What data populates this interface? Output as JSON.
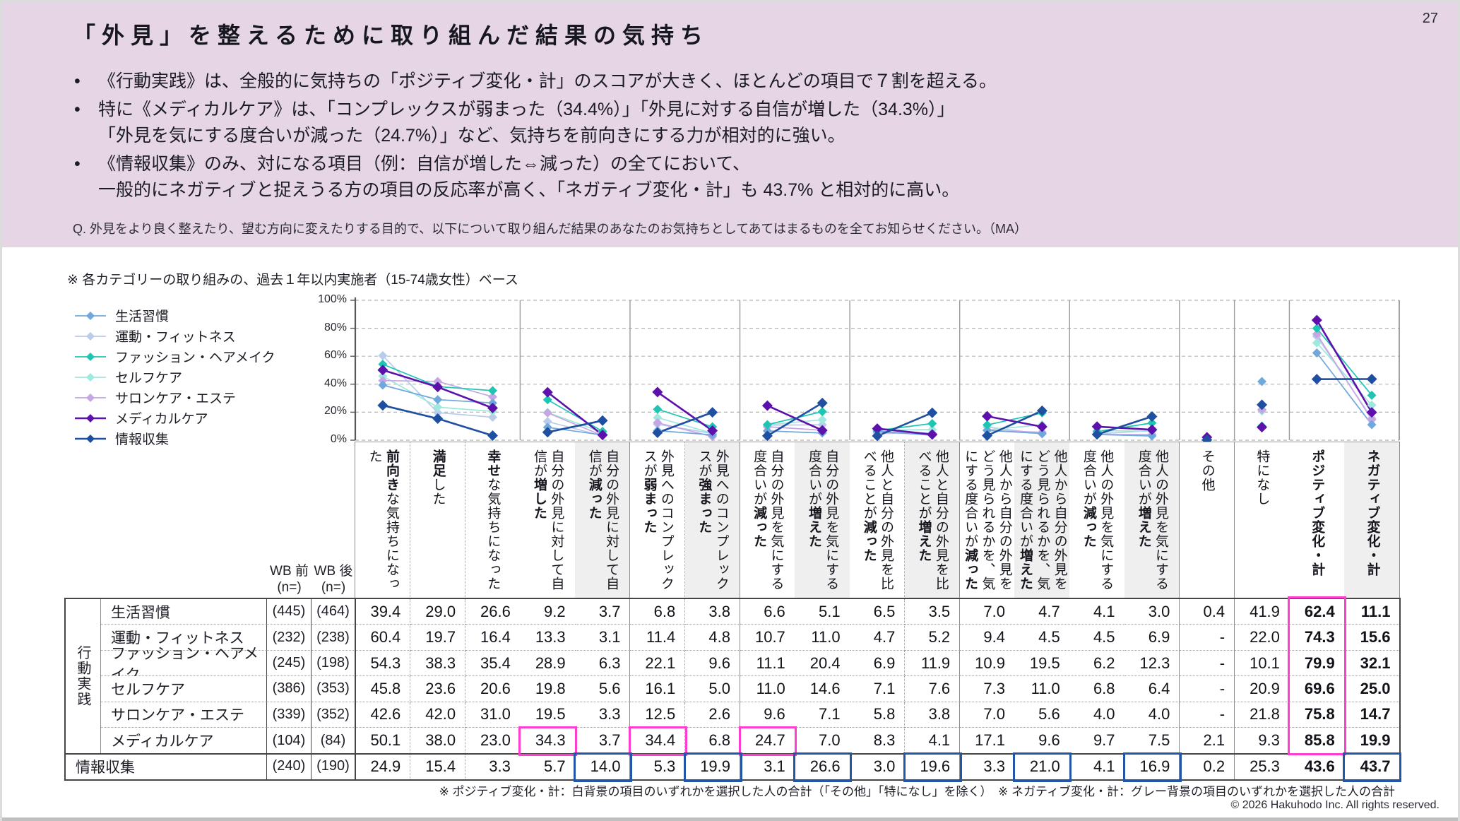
{
  "page_number": "27",
  "header": {
    "title": "「外見」を整えるために取り組んだ結果の気持ち",
    "bullet_char": "•",
    "bullets": [
      {
        "lines": [
          "《行動実践》は、全般的に気持ちの「ポジティブ変化・計」のスコアが大きく、ほとんどの項目で７割を超える。"
        ]
      },
      {
        "lines": [
          "特に《メディカルケア》は、「コンプレックスが弱まった（34.4%）」「外見に対する自信が増した（34.3%）」",
          "「外見を気にする度合いが減った（24.7%）」など、気持ちを前向きにする力が相対的に強い。"
        ]
      },
      {
        "lines": [
          "《情報収集》のみ、対になる項目（例：自信が増した⇔減った）の全てにおいて、",
          "一般的にネガティブと捉えうる方の項目の反応率が高く、「ネガティブ変化・計」も 43.7% と相対的に高い。"
        ]
      }
    ],
    "question": "Q. 外見をより良く整えたり、望む方向に変えたりする目的で、以下について取り組んだ結果のあなたのお気持ちとしてあてはまるものを全てお知らせください。（MA）"
  },
  "base_note": "※ 各カテゴリーの取り組みの、過去１年以内実施者（15-74歳女性）ベース",
  "chart_data": {
    "type": "line",
    "ylim": [
      0,
      100
    ],
    "grid": true,
    "legend_position": "left",
    "yticks": [
      {
        "label": "0%",
        "value": 0
      },
      {
        "label": "20%",
        "value": 20
      },
      {
        "label": "40%",
        "value": 40
      },
      {
        "label": "60%",
        "value": 60
      },
      {
        "label": "80%",
        "value": 80
      },
      {
        "label": "100%",
        "value": 100
      }
    ],
    "categories": [
      "前向きな気持ちになった",
      "満足した",
      "幸せな気持ちになった",
      "自分の外見に対して自信が増した",
      "自分の外見に対して自信が減った",
      "外見へのコンプレックスが弱まった",
      "外見へのコンプレックスが強まった",
      "自分の外見を気にする度合いが減った",
      "自分の外見を気にする度合いが増えた",
      "他人と自分の外見を比べることが減った",
      "他人と自分の外見を比べることが増えた",
      "他人から自分の外見をどう見られるかを、気にする度合いが減った",
      "他人から自分の外見をどう見られるかを、気にする度合いが増えた",
      "他人の外見を気にする度合いが減った",
      "他人の外見を気にする度合いが増えた",
      "その他",
      "特になし",
      "ポジティブ変化・計",
      "ネガティブ変化・計"
    ],
    "category_segments": [
      [
        {
          "t": "前向き",
          "b": true
        },
        {
          "t": "な気持ちになった",
          "b": false
        }
      ],
      [
        {
          "t": "満足",
          "b": true
        },
        {
          "t": "した",
          "b": false
        }
      ],
      [
        {
          "t": "幸せ",
          "b": true
        },
        {
          "t": "な気持ちになった",
          "b": false
        }
      ],
      [
        {
          "t": "自分の外見に対して自信が",
          "b": false
        },
        {
          "t": "増した",
          "b": true
        }
      ],
      [
        {
          "t": "自分の外見に対して自信が",
          "b": false
        },
        {
          "t": "減った",
          "b": true
        }
      ],
      [
        {
          "t": "外見へのコンプレックスが",
          "b": false
        },
        {
          "t": "弱まった",
          "b": true
        }
      ],
      [
        {
          "t": "外見へのコンプレックスが",
          "b": false
        },
        {
          "t": "強まった",
          "b": true
        }
      ],
      [
        {
          "t": "自分の外見を気にする度合いが",
          "b": false
        },
        {
          "t": "減った",
          "b": true
        }
      ],
      [
        {
          "t": "自分の外見を気にする度合いが",
          "b": false
        },
        {
          "t": "増えた",
          "b": true
        }
      ],
      [
        {
          "t": "他人と自分の外見を比べることが",
          "b": false
        },
        {
          "t": "減った",
          "b": true
        }
      ],
      [
        {
          "t": "他人と自分の外見を比べることが",
          "b": false
        },
        {
          "t": "増えた",
          "b": true
        }
      ],
      [
        {
          "t": "他人から自分の外見をどう見られるかを、気にする度合いが",
          "b": false
        },
        {
          "t": "減った",
          "b": true
        }
      ],
      [
        {
          "t": "他人から自分の外見をどう見られるかを、気にする度合いが",
          "b": false
        },
        {
          "t": "増えた",
          "b": true
        }
      ],
      [
        {
          "t": "他人の外見を気にする度合いが",
          "b": false
        },
        {
          "t": "減った",
          "b": true
        }
      ],
      [
        {
          "t": "他人の外見を気にする度合いが",
          "b": false
        },
        {
          "t": "増えた",
          "b": true
        }
      ],
      [
        {
          "t": "その他",
          "b": false
        }
      ],
      [
        {
          "t": "特になし",
          "b": false
        }
      ],
      [
        {
          "t": "ポジティブ変化・計",
          "b": true
        }
      ],
      [
        {
          "t": "ネガティブ変化・計",
          "b": true
        }
      ]
    ],
    "column_groups": [
      [
        0,
        1,
        2
      ],
      [
        3,
        4
      ],
      [
        5,
        6
      ],
      [
        7,
        8
      ],
      [
        9,
        10
      ],
      [
        11,
        12
      ],
      [
        13,
        14
      ],
      [
        15
      ],
      [
        16
      ],
      [
        17,
        18
      ]
    ],
    "gray_columns": [
      4,
      6,
      8,
      10,
      12,
      14,
      18
    ],
    "series": [
      {
        "name": "生活習慣",
        "color": "#6FA8DC",
        "emphasis": false,
        "n_pre": "(445)",
        "n_post": "(464)",
        "values": [
          39.4,
          29.0,
          26.6,
          9.2,
          3.7,
          6.8,
          3.8,
          6.6,
          5.1,
          6.5,
          3.5,
          7.0,
          4.7,
          4.1,
          3.0,
          0.4,
          41.9,
          62.4,
          11.1
        ]
      },
      {
        "name": "運動・フィットネス",
        "color": "#B9CCEC",
        "emphasis": false,
        "n_pre": "(232)",
        "n_post": "(238)",
        "values": [
          60.4,
          19.7,
          16.4,
          13.3,
          3.1,
          11.4,
          4.8,
          10.7,
          11.0,
          4.7,
          5.2,
          9.4,
          4.5,
          4.5,
          6.9,
          null,
          22.0,
          74.3,
          15.6
        ]
      },
      {
        "name": "ファッション・ヘアメイク",
        "color": "#1EC5B2",
        "emphasis": false,
        "n_pre": "(245)",
        "n_post": "(198)",
        "values": [
          54.3,
          38.3,
          35.4,
          28.9,
          6.3,
          22.1,
          9.6,
          11.1,
          20.4,
          6.9,
          11.9,
          10.9,
          19.5,
          6.2,
          12.3,
          null,
          10.1,
          79.9,
          32.1
        ]
      },
      {
        "name": "セルフケア",
        "color": "#9FE8DD",
        "emphasis": false,
        "n_pre": "(386)",
        "n_post": "(353)",
        "values": [
          45.8,
          23.6,
          20.6,
          19.8,
          5.6,
          16.1,
          5.0,
          11.0,
          14.6,
          7.1,
          7.6,
          7.3,
          11.0,
          6.8,
          6.4,
          null,
          20.9,
          69.6,
          25.0
        ]
      },
      {
        "name": "サロンケア・エステ",
        "color": "#C6A6E4",
        "emphasis": false,
        "n_pre": "(339)",
        "n_post": "(352)",
        "values": [
          42.6,
          42.0,
          31.0,
          19.5,
          3.3,
          12.5,
          2.6,
          9.6,
          7.1,
          5.8,
          3.8,
          7.0,
          5.6,
          4.0,
          4.0,
          null,
          21.8,
          75.8,
          14.7
        ]
      },
      {
        "name": "メディカルケア",
        "color": "#5D10AC",
        "emphasis": true,
        "n_pre": "(104)",
        "n_post": "(84)",
        "values": [
          50.1,
          38.0,
          23.0,
          34.3,
          3.7,
          34.4,
          6.8,
          24.7,
          7.0,
          8.3,
          4.1,
          17.1,
          9.6,
          9.7,
          7.5,
          2.1,
          9.3,
          85.8,
          19.9
        ]
      },
      {
        "name": "情報収集",
        "color": "#1E4FA0",
        "emphasis": true,
        "n_pre": "(240)",
        "n_post": "(190)",
        "values": [
          24.9,
          15.4,
          3.3,
          5.7,
          14.0,
          5.3,
          19.9,
          3.1,
          26.6,
          3.0,
          19.6,
          3.3,
          21.0,
          4.1,
          16.9,
          0.2,
          25.3,
          43.6,
          43.7
        ]
      }
    ]
  },
  "table": {
    "wb_pre": "WB 前",
    "wb_post": "WB 後",
    "n_eq": "(n=)",
    "group_label": "行動実践",
    "action_row_indices": [
      0,
      1,
      2,
      3,
      4,
      5
    ],
    "info_row_index": 6,
    "missing_mark": "-"
  },
  "highlights": {
    "pink_color": "#FF3DCE",
    "blue_color": "#2257A8",
    "pink_cells": [
      [
        5,
        3
      ],
      [
        5,
        5
      ],
      [
        5,
        7
      ]
    ],
    "pink_column": {
      "col": 17,
      "first_row": 0,
      "last_row": 5
    },
    "blue_cells": [
      [
        6,
        4
      ],
      [
        6,
        6
      ],
      [
        6,
        8
      ],
      [
        6,
        10
      ],
      [
        6,
        12
      ],
      [
        6,
        14
      ],
      [
        6,
        18
      ]
    ]
  },
  "footnote": "※ ポジティブ変化・計：白背景の項目のいずれかを選択した人の合計（「その他」「特になし」を除く）　※ ネガティブ変化・計：グレー背景の項目のいずれかを選択した人の合計",
  "copyright": "© 2026 Hakuhodo Inc. All rights reserved."
}
